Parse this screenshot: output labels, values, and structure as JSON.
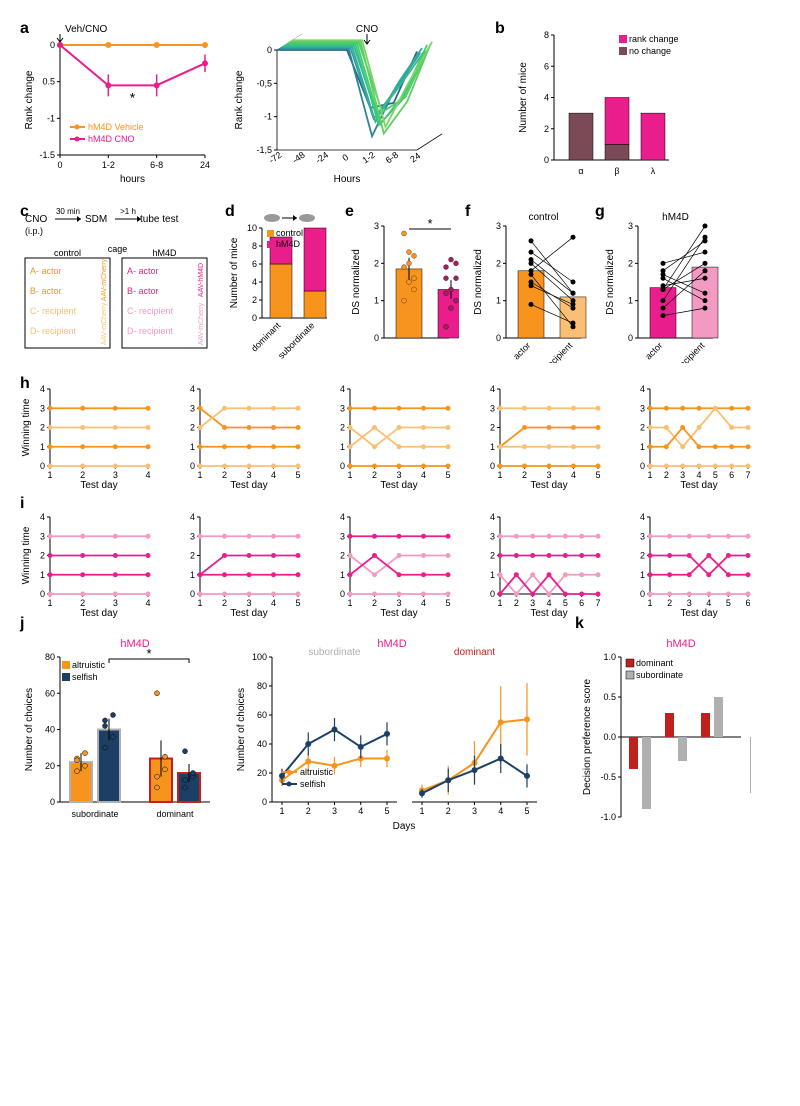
{
  "colors": {
    "orange": "#f7941d",
    "orange_light": "#fbbf73",
    "pink": "#e91e8c",
    "pink_light": "#f39ac3",
    "maroon": "#7a4a57",
    "darkblue": "#1c3f66",
    "red": "#c0211d",
    "gray": "#b0b0b0",
    "black": "#000000",
    "bg": "#ffffff"
  },
  "panel_a": {
    "left": {
      "title_arrow": "Veh/CNO",
      "x_label": "hours",
      "y_label": "Rank change",
      "x_ticks": [
        "0",
        "1-2",
        "6-8",
        "24"
      ],
      "y_lim": [
        -1.5,
        0
      ],
      "y_ticks": [
        -1.5,
        -1.0,
        -0.5,
        0
      ],
      "series": [
        {
          "name": "hM4D Vehicle",
          "color": "#f7941d",
          "points": [
            [
              0,
              0
            ],
            [
              1,
              0
            ],
            [
              2,
              0
            ],
            [
              3,
              0
            ]
          ],
          "err": [
            0,
            0.02,
            0.02,
            0.02
          ]
        },
        {
          "name": "hM4D CNO",
          "color": "#e91e8c",
          "points": [
            [
              0,
              0
            ],
            [
              1,
              -0.55
            ],
            [
              2,
              -0.55
            ],
            [
              3,
              -0.25
            ]
          ],
          "err": [
            0,
            0.15,
            0.15,
            0.12
          ]
        }
      ],
      "star_pos": [
        1.5,
        -0.65
      ]
    },
    "right": {
      "title_arrow": "CNO",
      "axes": {
        "x_label": "Hours",
        "y_label": "Rank change"
      },
      "x_ticks": [
        "-72",
        "-48",
        "-24",
        "0",
        "1-2",
        "6-8",
        "24"
      ],
      "y_ticks": [
        0,
        -0.5,
        -1,
        -1.5
      ],
      "n_lines": 10
    }
  },
  "panel_b": {
    "y_label": "Number of mice",
    "y_lim": [
      0,
      8
    ],
    "y_ticks": [
      0,
      2,
      4,
      6,
      8
    ],
    "categories": [
      "α",
      "β",
      "λ"
    ],
    "legend": [
      {
        "label": "rank change",
        "color": "#e91e8c"
      },
      {
        "label": "no change",
        "color": "#7a4a57"
      }
    ],
    "data": [
      {
        "cat": "α",
        "no_change": 3,
        "rank_change": 0
      },
      {
        "cat": "β",
        "no_change": 1,
        "rank_change": 3
      },
      {
        "cat": "λ",
        "no_change": 0,
        "rank_change": 3
      }
    ]
  },
  "panel_c": {
    "flow": [
      "CNO",
      "30 min",
      "SDM",
      ">1 h",
      "tube test"
    ],
    "flow_sub": "(i.p.)",
    "cage_label": "cage",
    "columns": [
      "control",
      "hM4D"
    ],
    "left_rows": [
      "A- actor",
      "B- actor",
      "C- recipient",
      "D- recipient"
    ],
    "left_side": [
      "AAV-",
      "mCherry",
      "AAV-",
      "mCherry"
    ],
    "left_colors": [
      "#f7941d",
      "#f7941d",
      "#fbbf73",
      "#fbbf73"
    ],
    "right_rows": [
      "A- actor",
      "B- actor",
      "C- recipient",
      "D- recipient"
    ],
    "right_side": [
      "AAV-",
      "hM4D",
      "AAV-",
      "mCherry"
    ],
    "right_colors": [
      "#e91e8c",
      "#e91e8c",
      "#f39ac3",
      "#f39ac3"
    ]
  },
  "panel_d": {
    "y_label": "Number of mice",
    "y_lim": [
      0,
      10
    ],
    "y_ticks": [
      0,
      2,
      4,
      6,
      8,
      10
    ],
    "x_ticks": [
      "dominant",
      "subordinate"
    ],
    "legend": [
      {
        "label": "control",
        "color": "#f7941d"
      },
      {
        "label": "hM4D",
        "color": "#e91e8c"
      }
    ],
    "data": [
      {
        "x": "dominant",
        "control": 6,
        "hm4d": 3
      },
      {
        "x": "subordinate",
        "control": 3,
        "hm4d": 7
      }
    ]
  },
  "panel_e": {
    "y_label": "DS normalized",
    "y_lim": [
      0,
      3
    ],
    "y_ticks": [
      0,
      1,
      2,
      3
    ],
    "bars": [
      {
        "color": "#f7941d",
        "mean": 1.85,
        "err": 0.3,
        "dots": [
          1.0,
          1.5,
          1.6,
          1.9,
          2.0,
          2.2,
          2.8,
          2.3,
          1.3
        ],
        "dot_color": "#f7941d"
      },
      {
        "color": "#e91e8c",
        "mean": 1.3,
        "err": 0.25,
        "dots": [
          0.3,
          0.8,
          1.0,
          1.2,
          1.3,
          1.6,
          1.9,
          2.1,
          2.0,
          1.6
        ],
        "dot_color": "#a02060"
      }
    ],
    "star_pos": "*"
  },
  "panel_f": {
    "title": "control",
    "y_label": "DS normalized",
    "y_lim": [
      0,
      3
    ],
    "y_ticks": [
      0,
      1,
      2,
      3
    ],
    "x_ticks": [
      "actor",
      "recipient"
    ],
    "bars": [
      {
        "color": "#f7941d",
        "mean": 1.8
      },
      {
        "color": "#fbbf73",
        "mean": 1.1
      }
    ],
    "pairs": [
      [
        1.7,
        0.3
      ],
      [
        1.8,
        2.7
      ],
      [
        2.0,
        1.0
      ],
      [
        1.5,
        0.8
      ],
      [
        2.1,
        1.2
      ],
      [
        0.9,
        0.4
      ],
      [
        2.3,
        1.5
      ],
      [
        2.6,
        1.2
      ],
      [
        1.4,
        0.9
      ]
    ]
  },
  "panel_g": {
    "title": "hM4D",
    "y_label": "DS normalized",
    "y_lim": [
      0,
      3
    ],
    "y_ticks": [
      0,
      1,
      2,
      3
    ],
    "x_ticks": [
      "actor",
      "recipient"
    ],
    "bars": [
      {
        "color": "#e91e8c",
        "mean": 1.35
      },
      {
        "color": "#f39ac3",
        "mean": 1.9
      }
    ],
    "pairs": [
      [
        1.3,
        3.0
      ],
      [
        1.0,
        2.7
      ],
      [
        1.6,
        1.0
      ],
      [
        1.8,
        2.6
      ],
      [
        1.3,
        2.0
      ],
      [
        0.6,
        0.8
      ],
      [
        1.7,
        1.2
      ],
      [
        2.0,
        2.3
      ],
      [
        1.4,
        1.6
      ],
      [
        0.8,
        1.8
      ]
    ]
  },
  "panel_h": {
    "y_label": "Winning time",
    "y_lim": [
      0,
      4
    ],
    "y_ticks": [
      0,
      1,
      2,
      3,
      4
    ],
    "x_label": "Test day",
    "plots": [
      {
        "days": 4,
        "lines": [
          {
            "c": "#f7941d",
            "y": [
              3,
              3,
              3,
              3
            ]
          },
          {
            "c": "#fbbf73",
            "y": [
              2,
              2,
              2,
              2
            ]
          },
          {
            "c": "#f7941d",
            "y": [
              1,
              1,
              1,
              1
            ]
          },
          {
            "c": "#fbbf73",
            "y": [
              0,
              0,
              0,
              0
            ]
          }
        ]
      },
      {
        "days": 5,
        "lines": [
          {
            "c": "#f7941d",
            "y": [
              3,
              2,
              2,
              2,
              2
            ]
          },
          {
            "c": "#fbbf73",
            "y": [
              2,
              3,
              3,
              3,
              3
            ]
          },
          {
            "c": "#f7941d",
            "y": [
              1,
              1,
              1,
              1,
              1
            ]
          },
          {
            "c": "#fbbf73",
            "y": [
              0,
              0,
              0,
              0,
              0
            ]
          }
        ]
      },
      {
        "days": 5,
        "lines": [
          {
            "c": "#f7941d",
            "y": [
              3,
              3,
              3,
              3,
              3
            ]
          },
          {
            "c": "#fbbf73",
            "y": [
              2,
              1,
              2,
              2,
              2
            ]
          },
          {
            "c": "#fbbf73",
            "y": [
              1,
              2,
              1,
              1,
              1
            ]
          },
          {
            "c": "#f7941d",
            "y": [
              0,
              0,
              0,
              0,
              0
            ]
          }
        ]
      },
      {
        "days": 5,
        "lines": [
          {
            "c": "#fbbf73",
            "y": [
              3,
              3,
              3,
              3,
              3
            ]
          },
          {
            "c": "#f7941d",
            "y": [
              1,
              2,
              2,
              2,
              2
            ]
          },
          {
            "c": "#fbbf73",
            "y": [
              1,
              1,
              1,
              1,
              1
            ]
          },
          {
            "c": "#f7941d",
            "y": [
              0,
              0,
              0,
              0,
              0
            ]
          }
        ]
      },
      {
        "days": 7,
        "lines": [
          {
            "c": "#f7941d",
            "y": [
              3,
              3,
              3,
              3,
              3,
              3,
              3
            ]
          },
          {
            "c": "#fbbf73",
            "y": [
              2,
              2,
              1,
              2,
              3,
              2,
              2
            ]
          },
          {
            "c": "#f7941d",
            "y": [
              1,
              1,
              2,
              1,
              1,
              1,
              1
            ]
          },
          {
            "c": "#fbbf73",
            "y": [
              0,
              0,
              0,
              0,
              0,
              0,
              0
            ]
          }
        ]
      }
    ]
  },
  "panel_i": {
    "y_label": "Winning time",
    "y_lim": [
      0,
      4
    ],
    "y_ticks": [
      0,
      1,
      2,
      3,
      4
    ],
    "x_label": "Test day",
    "plots": [
      {
        "days": 4,
        "lines": [
          {
            "c": "#f39ac3",
            "y": [
              3,
              3,
              3,
              3
            ]
          },
          {
            "c": "#e91e8c",
            "y": [
              2,
              2,
              2,
              2
            ]
          },
          {
            "c": "#e91e8c",
            "y": [
              1,
              1,
              1,
              1
            ]
          },
          {
            "c": "#f39ac3",
            "y": [
              0,
              0,
              0,
              0
            ]
          }
        ]
      },
      {
        "days": 5,
        "lines": [
          {
            "c": "#f39ac3",
            "y": [
              3,
              3,
              3,
              3,
              3
            ]
          },
          {
            "c": "#e91e8c",
            "y": [
              1,
              2,
              2,
              2,
              2
            ]
          },
          {
            "c": "#e91e8c",
            "y": [
              1,
              1,
              1,
              1,
              1
            ]
          },
          {
            "c": "#f39ac3",
            "y": [
              0,
              0,
              0,
              0,
              0
            ]
          }
        ]
      },
      {
        "days": 5,
        "lines": [
          {
            "c": "#e91e8c",
            "y": [
              3,
              3,
              3,
              3,
              3
            ]
          },
          {
            "c": "#f39ac3",
            "y": [
              2,
              1,
              2,
              2,
              2
            ]
          },
          {
            "c": "#e91e8c",
            "y": [
              1,
              2,
              1,
              1,
              1
            ]
          },
          {
            "c": "#f39ac3",
            "y": [
              0,
              0,
              0,
              0,
              0
            ]
          }
        ]
      },
      {
        "days": 7,
        "lines": [
          {
            "c": "#f39ac3",
            "y": [
              3,
              3,
              3,
              3,
              3,
              3,
              3
            ]
          },
          {
            "c": "#e91e8c",
            "y": [
              2,
              2,
              2,
              2,
              2,
              2,
              2
            ]
          },
          {
            "c": "#f39ac3",
            "y": [
              1,
              0,
              1,
              0,
              1,
              1,
              1
            ]
          },
          {
            "c": "#e91e8c",
            "y": [
              0,
              1,
              0,
              1,
              0,
              0,
              0
            ]
          }
        ]
      },
      {
        "days": 6,
        "lines": [
          {
            "c": "#f39ac3",
            "y": [
              3,
              3,
              3,
              3,
              3,
              3
            ]
          },
          {
            "c": "#e91e8c",
            "y": [
              2,
              2,
              2,
              1,
              2,
              2
            ]
          },
          {
            "c": "#e91e8c",
            "y": [
              1,
              1,
              1,
              2,
              1,
              1
            ]
          },
          {
            "c": "#f39ac3",
            "y": [
              0,
              0,
              0,
              0,
              0,
              0
            ]
          }
        ]
      }
    ]
  },
  "panel_j": {
    "title": "hM4D",
    "left": {
      "y_label": "Number of choices",
      "y_lim": [
        0,
        80
      ],
      "y_ticks": [
        0,
        20,
        40,
        60,
        80
      ],
      "groups": [
        "subordinate",
        "dominant"
      ],
      "group_colors": [
        "#b0b0b0",
        "#c0211d"
      ],
      "legend": [
        {
          "label": "altruistic",
          "color": "#f7941d"
        },
        {
          "label": "selfish",
          "color": "#1c3f66"
        }
      ],
      "data": [
        {
          "group": "subordinate",
          "altruistic": {
            "mean": 22,
            "err": 5,
            "dots": [
              17,
              20,
              24,
              27,
              23
            ]
          },
          "selfish": {
            "mean": 40,
            "err": 6,
            "dots": [
              30,
              36,
              42,
              48,
              45
            ]
          }
        },
        {
          "group": "dominant",
          "altruistic": {
            "mean": 24,
            "err": 10,
            "dots": [
              8,
              18,
              60,
              25,
              14
            ]
          },
          "selfish": {
            "mean": 16,
            "err": 5,
            "dots": [
              8,
              14,
              28,
              16,
              12
            ]
          }
        }
      ],
      "star": "*"
    },
    "right": {
      "y_label": "Number of choices",
      "y_lim": [
        0,
        100
      ],
      "y_ticks": [
        0,
        20,
        40,
        60,
        80,
        100
      ],
      "x_label": "Days",
      "x_ticks": [
        1,
        2,
        3,
        4,
        5
      ],
      "groups": [
        "subordinate",
        "dominant"
      ],
      "group_colors": [
        "#b0b0b0",
        "#c0211d"
      ],
      "legend": [
        {
          "label": "altruistic",
          "color": "#f7941d"
        },
        {
          "label": "selfish",
          "color": "#1c3f66"
        }
      ],
      "subordinate": {
        "altruistic": {
          "y": [
            15,
            28,
            25,
            30,
            30
          ],
          "err": [
            4,
            6,
            6,
            6,
            6
          ]
        },
        "selfish": {
          "y": [
            18,
            40,
            50,
            38,
            47
          ],
          "err": [
            5,
            8,
            8,
            8,
            8
          ]
        }
      },
      "dominant": {
        "altruistic": {
          "y": [
            8,
            15,
            27,
            55,
            57
          ],
          "err": [
            4,
            10,
            15,
            25,
            25
          ]
        },
        "selfish": {
          "y": [
            6,
            15,
            22,
            30,
            18
          ],
          "err": [
            3,
            8,
            10,
            10,
            8
          ]
        }
      }
    }
  },
  "panel_k": {
    "title": "hM4D",
    "y_label": "Decision preference score",
    "y_lim": [
      -1,
      1
    ],
    "y_ticks": [
      -1.0,
      -0.5,
      0,
      0.5,
      1.0
    ],
    "legend": [
      {
        "label": "dominant",
        "color": "#c0211d"
      },
      {
        "label": "subordinate",
        "color": "#b0b0b0"
      }
    ],
    "n_pairs": 5,
    "dominant": [
      -0.4,
      0.3,
      0.3,
      0.0,
      0.0
    ],
    "subordinate": [
      -0.9,
      -0.3,
      0.5,
      -0.7,
      0.6
    ]
  },
  "labels": {
    "a": "a",
    "b": "b",
    "c": "c",
    "d": "d",
    "e": "e",
    "f": "f",
    "g": "g",
    "h": "h",
    "i": "i",
    "j": "j",
    "k": "k"
  }
}
